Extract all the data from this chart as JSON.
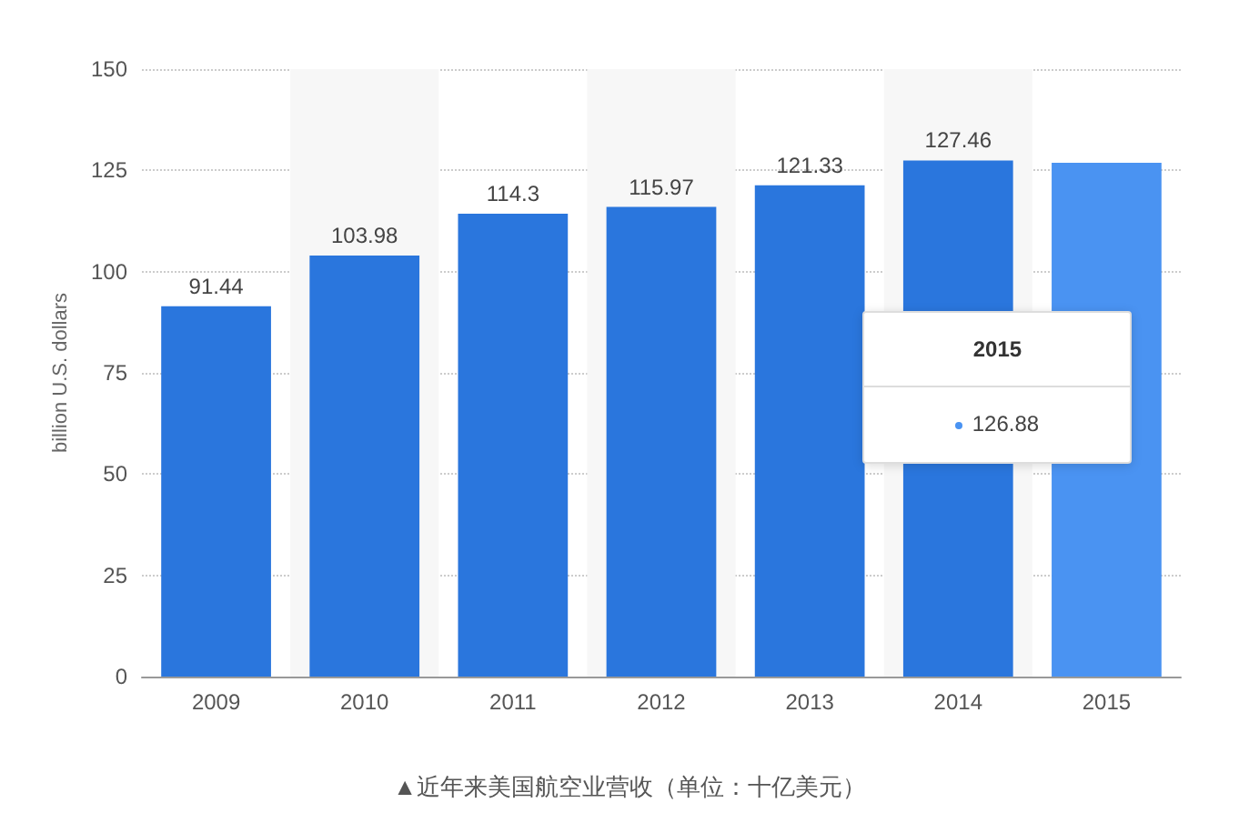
{
  "chart_data": {
    "type": "bar",
    "ylabel": "billion U.S. dollars",
    "categories": [
      "2009",
      "2010",
      "2011",
      "2012",
      "2013",
      "2014",
      "2015"
    ],
    "values": [
      91.44,
      103.98,
      114.3,
      115.97,
      121.33,
      127.46,
      126.88
    ],
    "colors": [
      "#2a76dd",
      "#2a76dd",
      "#2a76dd",
      "#2a76dd",
      "#2a76dd",
      "#2a76dd",
      "#4a93f2"
    ],
    "value_labels": [
      "91.44",
      "103.98",
      "114.3",
      "115.97",
      "121.33",
      "127.46",
      null
    ],
    "ylim": [
      0,
      150
    ],
    "yticks": [
      0,
      25,
      50,
      75,
      100,
      125,
      150
    ],
    "grid": "y",
    "annotations": [
      "2015",
      "126.88",
      "▲近年来美国航空业营收（单位：十亿美元）"
    ]
  }
}
